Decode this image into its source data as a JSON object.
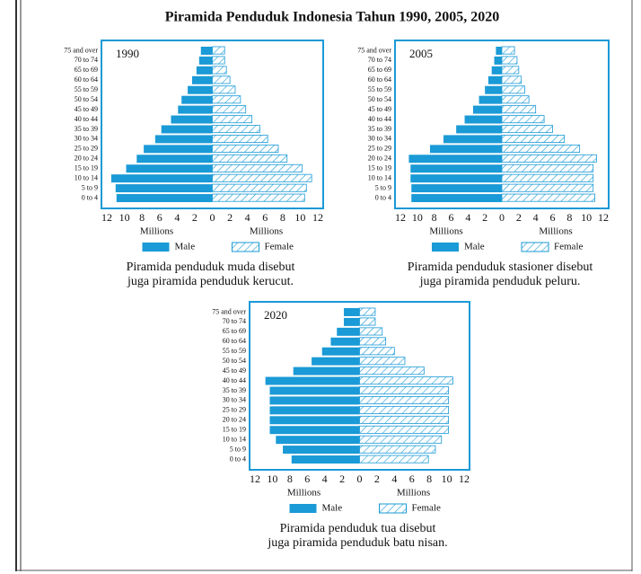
{
  "title": "Piramida Penduduk Indonesia Tahun 1990, 2005, 2020",
  "chart_data": [
    {
      "type": "pyramid",
      "title": "1990",
      "categories": [
        "0 to 4",
        "5 to 9",
        "10 to 14",
        "15 to 19",
        "20 to 24",
        "25 to 29",
        "30 to 34",
        "35 to 39",
        "40 to 44",
        "45 to 49",
        "50 to 54",
        "55 to 59",
        "60 to 64",
        "65 to 69",
        "70 to 74",
        "75 and over"
      ],
      "series": [
        {
          "name": "Male",
          "color": "#1a9ad6",
          "values": [
            10.9,
            11,
            11.5,
            9.8,
            8.6,
            7.8,
            6.5,
            5.8,
            4.7,
            3.9,
            3.5,
            2.8,
            2.3,
            1.8,
            1.5,
            1.3
          ]
        },
        {
          "name": "Female",
          "color": "#1a9ad6",
          "values": [
            10.5,
            10.7,
            11.3,
            10.2,
            8.5,
            7.5,
            6.3,
            5.4,
            4.5,
            3.8,
            3.2,
            2.6,
            2.0,
            1.6,
            1.4,
            1.4
          ]
        }
      ],
      "xlim": [
        0,
        12
      ],
      "xticks": [
        0,
        2,
        4,
        6,
        8,
        10,
        12
      ],
      "xlabel": "Millions",
      "caption": [
        "Piramida penduduk muda disebut",
        "juga piramida penduduk kerucut."
      ]
    },
    {
      "type": "pyramid",
      "title": "2005",
      "categories": [
        "0 to 4",
        "5 to 9",
        "10 to 14",
        "15 to 19",
        "20 to 24",
        "25 to 29",
        "30 to 34",
        "35 to 39",
        "40 to 44",
        "45 to 49",
        "50 to 54",
        "55 to 59",
        "60 to 64",
        "65 to 69",
        "70 to 74",
        "75 and over"
      ],
      "series": [
        {
          "name": "Male",
          "color": "#1a9ad6",
          "values": [
            10.7,
            10.7,
            10.8,
            10.8,
            11,
            8.5,
            6.9,
            5.4,
            4.4,
            3.4,
            2.7,
            2.0,
            1.6,
            1.2,
            0.9,
            0.7
          ]
        },
        {
          "name": "Female",
          "color": "#1a9ad6",
          "values": [
            11,
            10.8,
            10.8,
            10.8,
            11.2,
            9.2,
            7.4,
            6,
            5,
            4,
            3.2,
            2.7,
            2.3,
            2.0,
            1.8,
            1.5
          ]
        }
      ],
      "xlim": [
        0,
        12
      ],
      "xticks": [
        0,
        2,
        4,
        6,
        8,
        10,
        12
      ],
      "xlabel": "Millions",
      "caption": [
        "Piramida penduduk stasioner disebut",
        "juga piramida penduduk peluru."
      ]
    },
    {
      "type": "pyramid",
      "title": "2020",
      "categories": [
        "0 to 4",
        "5 to 9",
        "10 to 14",
        "15 to 19",
        "20 to 24",
        "25 to 29",
        "30 to 34",
        "35 to 39",
        "40 to 44",
        "45 to 49",
        "50 to 54",
        "55 to 59",
        "60 to 64",
        "65 to 69",
        "70 to 74",
        "75 and over"
      ],
      "series": [
        {
          "name": "Male",
          "color": "#1a9ad6",
          "values": [
            7.8,
            8.8,
            9.6,
            10.3,
            10.3,
            10.3,
            10.3,
            10.3,
            10.8,
            7.6,
            5.5,
            4.3,
            3.3,
            2.6,
            1.8,
            1.8
          ]
        },
        {
          "name": "Female",
          "color": "#1a9ad6",
          "values": [
            7.9,
            8.7,
            9.4,
            10.2,
            10.2,
            10.2,
            10.2,
            10.2,
            10.7,
            7.4,
            5.2,
            4.0,
            3.0,
            2.6,
            1.8,
            1.8
          ]
        }
      ],
      "xlim": [
        0,
        12
      ],
      "xticks": [
        0,
        2,
        4,
        6,
        8,
        10,
        12
      ],
      "xlabel": "Millions",
      "caption": [
        "Piramida penduduk tua disebut",
        "juga piramida penduduk batu nisan."
      ]
    }
  ]
}
